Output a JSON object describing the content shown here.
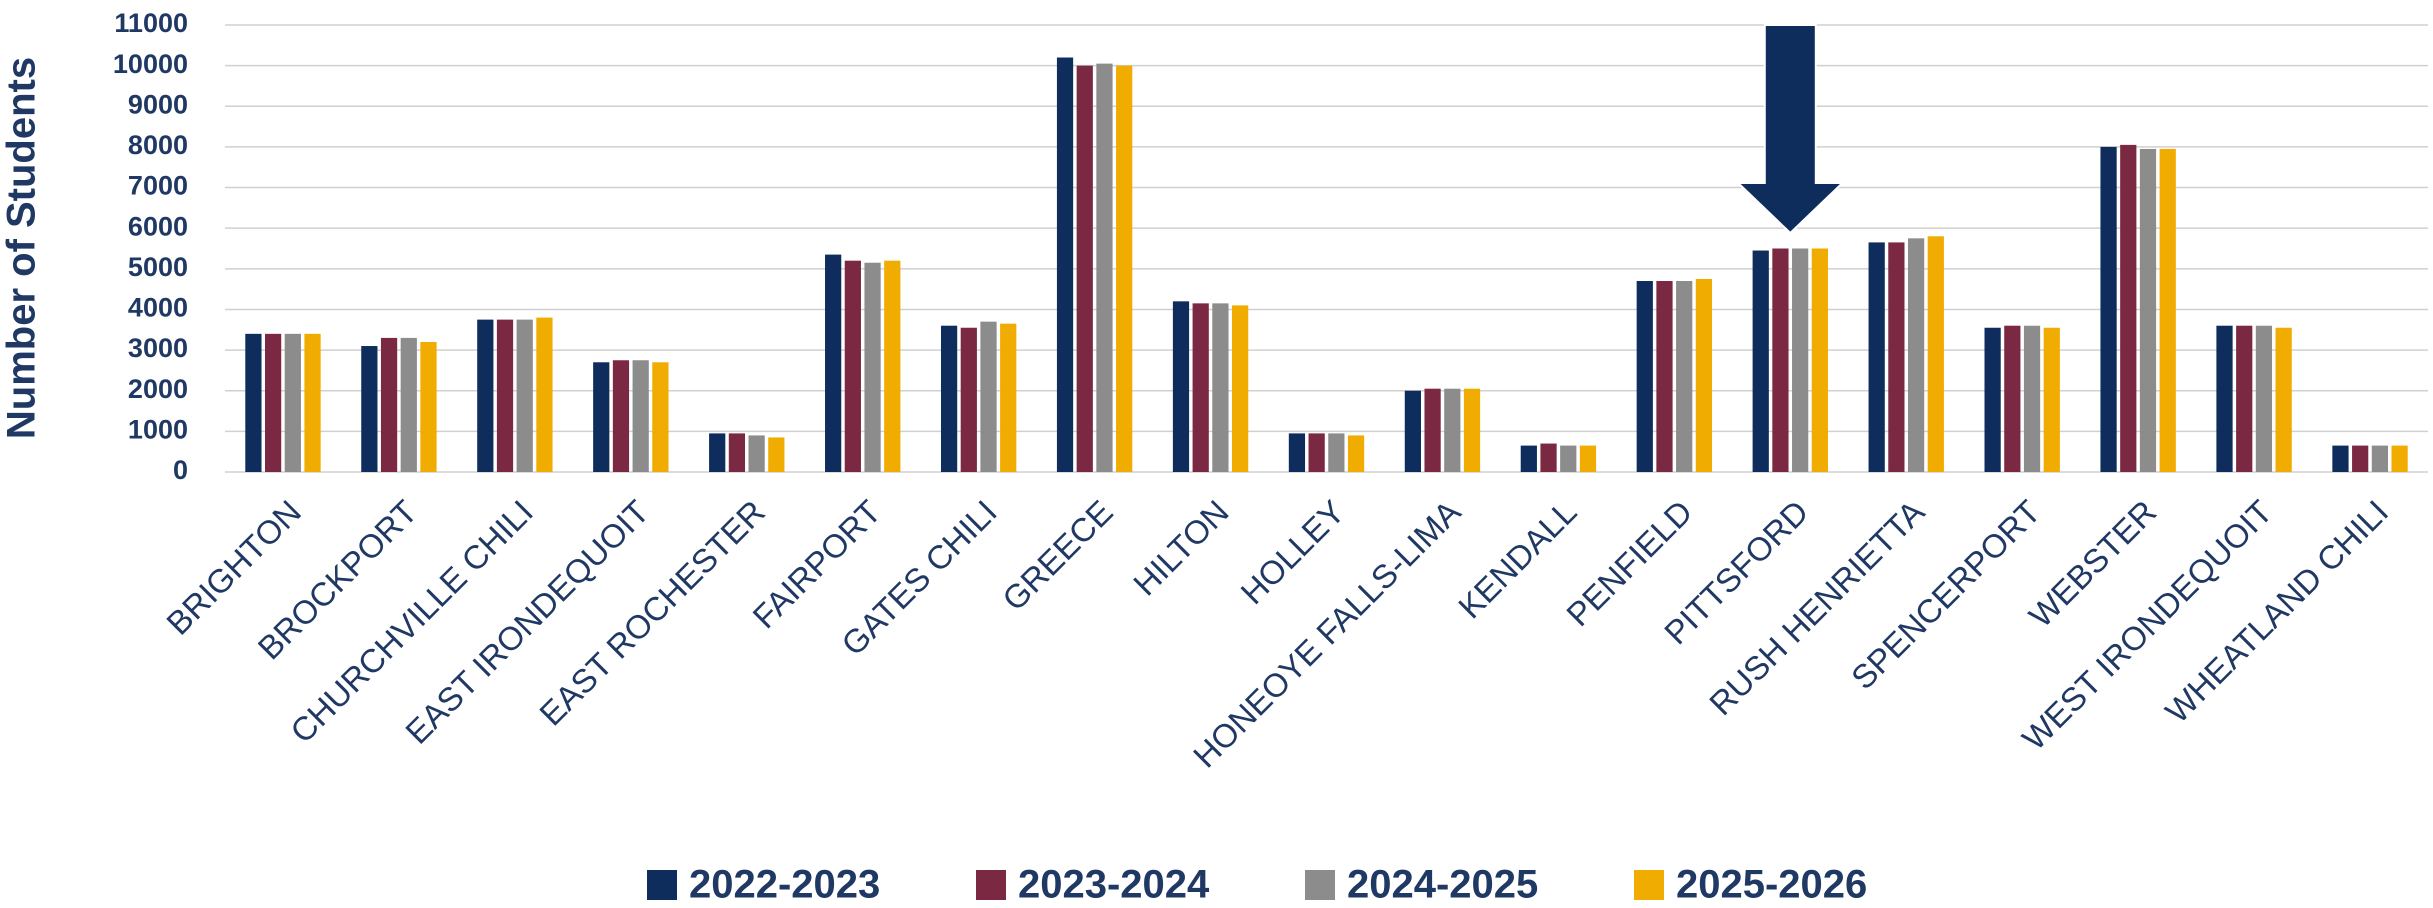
{
  "chart_data": {
    "type": "bar",
    "y_label": "Number of Students",
    "categories": [
      "BRIGHTON",
      "BROCKPORT",
      "CHURCHVILLE CHILI",
      "EAST IRONDEQUOIT",
      "EAST ROCHESTER",
      "FAIRPORT",
      "GATES CHILI",
      "GREECE",
      "HILTON",
      "HOLLEY",
      "HONEOYE FALLS-LIMA",
      "KENDALL",
      "PENFIELD",
      "PITTSFORD",
      "RUSH HENRIETTA",
      "SPENCERPORT",
      "WEBSTER",
      "WEST IRONDEQUOIT",
      "WHEATLAND CHILI"
    ],
    "series": [
      {
        "name": "2022-2023",
        "color": "#0f2d5c",
        "values": [
          3400,
          3100,
          3750,
          2700,
          950,
          5350,
          3600,
          10200,
          4200,
          950,
          2000,
          650,
          4700,
          5450,
          5650,
          3550,
          8000,
          3600,
          650
        ]
      },
      {
        "name": "2023-2024",
        "color": "#7b2942",
        "values": [
          3400,
          3300,
          3750,
          2750,
          950,
          5200,
          3550,
          10000,
          4150,
          950,
          2050,
          700,
          4700,
          5500,
          5650,
          3600,
          8050,
          3600,
          650
        ]
      },
      {
        "name": "2024-2025",
        "color": "#8c8c8c",
        "values": [
          3400,
          3300,
          3750,
          2750,
          900,
          5150,
          3700,
          10050,
          4150,
          950,
          2050,
          650,
          4700,
          5500,
          5750,
          3600,
          7950,
          3600,
          650
        ]
      },
      {
        "name": "2025-2026",
        "color": "#f0ac00",
        "values": [
          3400,
          3200,
          3800,
          2700,
          850,
          5200,
          3650,
          10000,
          4100,
          900,
          2050,
          650,
          4750,
          5500,
          5800,
          3550,
          7950,
          3550,
          650
        ]
      }
    ],
    "ylim": [
      0,
      11000
    ],
    "yticks": [
      0,
      1000,
      2000,
      3000,
      4000,
      5000,
      6000,
      7000,
      8000,
      9000,
      10000,
      11000
    ],
    "grid": true,
    "legend": "bottom"
  }
}
